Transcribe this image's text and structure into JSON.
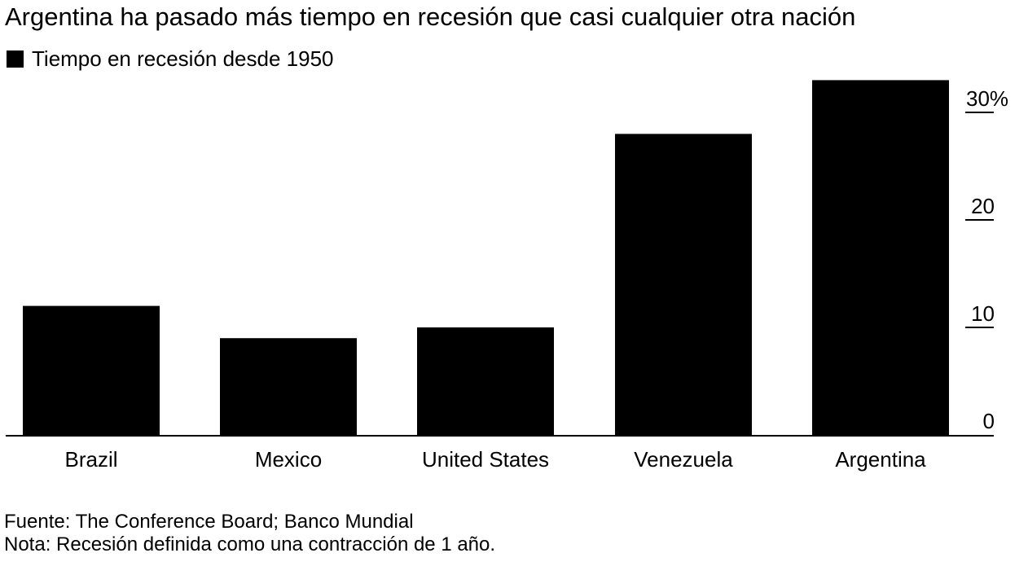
{
  "chart_data": {
    "type": "bar",
    "title": "Argentina ha pasado más tiempo en recesión que casi cualquier otra nación",
    "legend": "Tiempo en recesión desde 1950",
    "categories": [
      "Brazil",
      "Mexico",
      "United States",
      "Venezuela",
      "Argentina"
    ],
    "values": [
      12,
      9,
      10,
      28,
      33
    ],
    "ylim": [
      0,
      33
    ],
    "yticks": [
      0,
      10,
      20,
      30
    ],
    "ytick_labels": [
      "0",
      "10",
      "20",
      "30%"
    ],
    "xlabel": "",
    "ylabel": "",
    "grid": false,
    "legend_position": "top-left",
    "y_axis_side": "right",
    "bar_color": "#000000"
  },
  "footer": {
    "source": "Fuente: The Conference Board; Banco Mundial",
    "note": "Nota: Recesión definida como una contracción de 1 año."
  }
}
